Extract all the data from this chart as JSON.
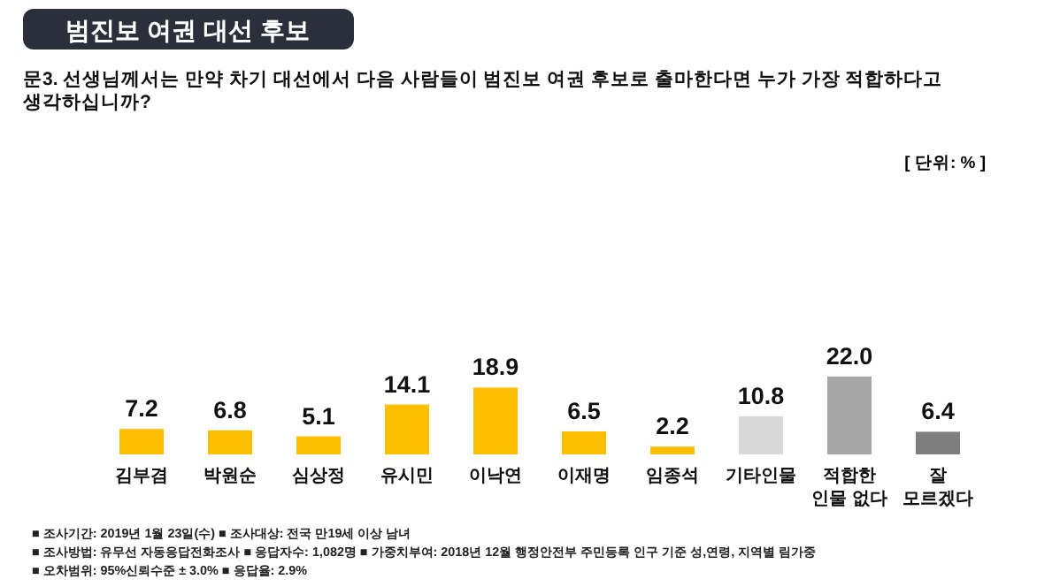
{
  "chart_data": {
    "type": "bar",
    "title": "범진보 여권 대선 후보",
    "subtitle": "문3. 선생님께서는 만약 차기 대선에서 다음 사람들이 범진보 여권 후보로 출마한다면 누가 가장 적합하다고\n생각하십니까?",
    "categories": [
      "김부겸",
      "박원순",
      "심상정",
      "유시민",
      "이낙연",
      "이재명",
      "임종석",
      "기타인물",
      "적합한\n인물 없다",
      "잘\n모르겠다"
    ],
    "values": [
      7.2,
      6.8,
      5.1,
      14.1,
      18.9,
      6.5,
      2.2,
      10.8,
      22.0,
      6.4
    ],
    "colors": [
      "#fdbf00",
      "#fdbf00",
      "#fdbf00",
      "#fdbf00",
      "#fdbf00",
      "#fdbf00",
      "#fdbf00",
      "#d9d9d9",
      "#a6a6a6",
      "#7f7f7f"
    ],
    "value_labels": [
      "7.2",
      "6.8",
      "5.1",
      "14.1",
      "18.9",
      "6.5",
      "2.2",
      "10.8",
      "22.0",
      "6.4"
    ],
    "annotations": [
      "[ 단위: % ]",
      "■ 조사기간: 2019년 1월 23일(수) ■ 조사대상: 전국 만19세 이상 남녀",
      "■ 조사방법: 유무선 자동응답전화조사 ■ 응답자수: 1,082명 ■ 가중치부여: 2018년 12월 행정안전부 주민등록 인구 기준 성,연령, 지역별 림가중",
      "■ 오차범위: 95%신뢰수준 ± 3.0% ■ 응답율: 2.9%"
    ]
  }
}
